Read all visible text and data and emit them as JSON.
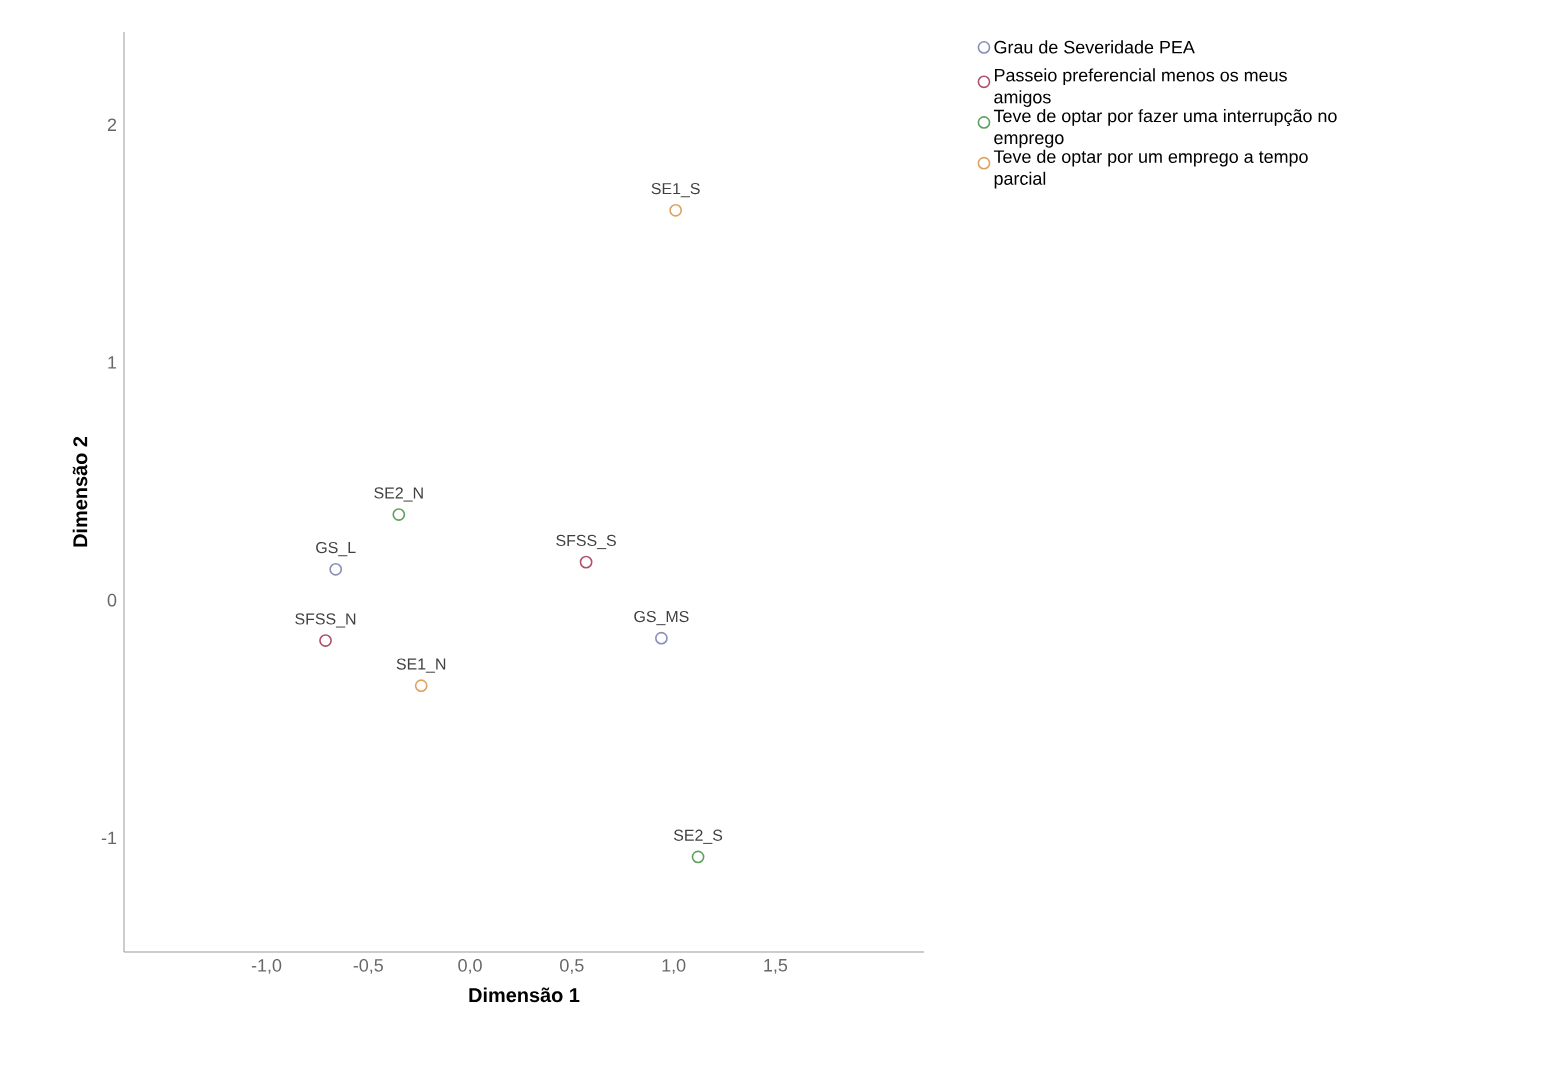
{
  "chart_data": {
    "type": "scatter",
    "xlabel": "Dimensão 1",
    "ylabel": "Dimensão 2",
    "xlim": [
      -1.7,
      2.23
    ],
    "ylim": [
      -1.48,
      2.39
    ],
    "xticks": [
      {
        "value": -1,
        "label": "-1,0"
      },
      {
        "value": -0.5,
        "label": "-0,5"
      },
      {
        "value": 0,
        "label": "0,0"
      },
      {
        "value": 0.5,
        "label": "0,5"
      },
      {
        "value": 1,
        "label": "1,0"
      },
      {
        "value": 1.5,
        "label": "1,5"
      }
    ],
    "yticks": [
      -1,
      0,
      1,
      2
    ],
    "series": [
      {
        "name": "Grau de Severidade PEA",
        "color": "#8a8fb8",
        "x": [
          -0.66,
          0.94
        ],
        "values": [
          0.13,
          -0.16
        ]
      },
      {
        "name": "Passeio preferencial menos os meus amigos",
        "color": "#b0506a",
        "x": [
          -0.71,
          0.57
        ],
        "values": [
          -0.17,
          0.16
        ]
      },
      {
        "name": "Teve de optar por fazer uma interrupção no emprego",
        "color": "#5fa060",
        "x": [
          -0.35,
          1.12
        ],
        "values": [
          0.36,
          -1.08
        ]
      },
      {
        "name": "Teve de optar por um emprego a tempo parcial",
        "color": "#e0a060",
        "x": [
          -0.24,
          1.01
        ],
        "values": [
          -0.36,
          1.64
        ]
      }
    ],
    "annotations": [
      {
        "text": "GS_L",
        "x": -0.66,
        "y": 0.13
      },
      {
        "text": "GS_MS",
        "x": 0.94,
        "y": -0.16
      },
      {
        "text": "SFSS_N",
        "x": -0.71,
        "y": -0.17
      },
      {
        "text": "SFSS_S",
        "x": 0.57,
        "y": 0.16
      },
      {
        "text": "SE2_N",
        "x": -0.35,
        "y": 0.36
      },
      {
        "text": "SE2_S",
        "x": 1.12,
        "y": -1.08
      },
      {
        "text": "SE1_N",
        "x": -0.24,
        "y": -0.36
      },
      {
        "text": "SE1_S",
        "x": 1.01,
        "y": 1.64
      }
    ],
    "marker": "circle",
    "grid": false,
    "legend": "top right"
  }
}
